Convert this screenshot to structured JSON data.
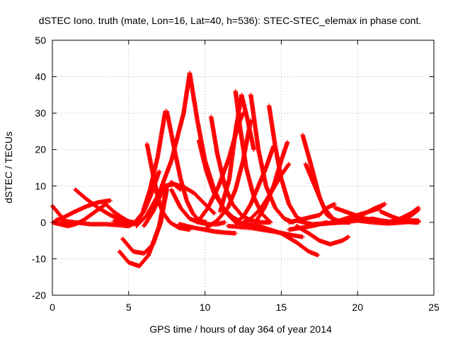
{
  "chart_data": {
    "type": "scatter",
    "title": "dSTEC Iono. truth (mate, Lon=16, Lat=40, h=536): STEC-STEC_elemax in phase cont.",
    "xlabel": "GPS time / hours of day 364 of year 2014",
    "ylabel": "dSTEC  / TECUs",
    "xlim": [
      0,
      25
    ],
    "ylim": [
      -20,
      50
    ],
    "xticks": [
      0,
      5,
      10,
      15,
      20,
      25
    ],
    "yticks": [
      -20,
      -10,
      0,
      10,
      20,
      30,
      40,
      50
    ],
    "grid": true,
    "marker": "plus",
    "color": "#ff0000",
    "series": [
      {
        "x": [
          0.0,
          0.4,
          0.8,
          1.0
        ],
        "y": [
          4.5,
          2.5,
          0.5,
          -0.5
        ]
      },
      {
        "x": [
          0.0,
          0.5,
          1.0,
          1.5,
          2.0,
          2.5,
          3.0,
          3.5
        ],
        "y": [
          0.0,
          -0.5,
          -1.0,
          -0.5,
          0.5,
          2.0,
          3.5,
          5.0
        ]
      },
      {
        "x": [
          0.2,
          0.8,
          1.5,
          2.3,
          3.0,
          3.8
        ],
        "y": [
          0.5,
          1.5,
          3.0,
          4.5,
          5.5,
          6.0
        ]
      },
      {
        "x": [
          1.5,
          2.2,
          3.0,
          3.8,
          4.5,
          5.0,
          5.3,
          5.5
        ],
        "y": [
          9.0,
          6.5,
          4.0,
          2.0,
          0.8,
          0.3,
          0.0,
          0.0
        ]
      },
      {
        "x": [
          3.5,
          4.0,
          4.5,
          4.9
        ],
        "y": [
          5.0,
          3.0,
          1.5,
          0.5
        ]
      },
      {
        "x": [
          0.5,
          1.5,
          2.5,
          3.5,
          4.5,
          5.0,
          5.5,
          6.0,
          6.5,
          7.0
        ],
        "y": [
          0.5,
          0.0,
          -0.5,
          -0.5,
          -0.8,
          -1.0,
          0.0,
          3.0,
          8.0,
          14.0
        ]
      },
      {
        "x": [
          4.0,
          4.8,
          5.4,
          5.9,
          6.4,
          6.9,
          7.4
        ],
        "y": [
          0.3,
          -0.2,
          0.0,
          2.5,
          9.0,
          18.0,
          30.5
        ]
      },
      {
        "x": [
          5.5,
          6.2,
          7.0,
          7.8,
          8.6,
          9.0
        ],
        "y": [
          -1.0,
          2.0,
          8.0,
          17.0,
          30.0,
          41.0
        ]
      },
      {
        "x": [
          6.2,
          6.6,
          6.9,
          7.2,
          7.7,
          8.3,
          9.0
        ],
        "y": [
          21.5,
          13.0,
          7.0,
          3.0,
          0.0,
          -1.5,
          -2.0
        ]
      },
      {
        "x": [
          7.5,
          8.0,
          8.4,
          8.8,
          9.2,
          9.6,
          10.1
        ],
        "y": [
          30.5,
          20.0,
          12.0,
          6.0,
          2.5,
          0.5,
          0.0
        ]
      },
      {
        "x": [
          9.0,
          9.5,
          10.0,
          10.6,
          11.3,
          12.0
        ],
        "y": [
          41.0,
          28.0,
          17.0,
          9.0,
          3.0,
          0.0
        ]
      },
      {
        "x": [
          4.4,
          5.0,
          5.7,
          6.3,
          7.0,
          7.5
        ],
        "y": [
          -8.0,
          -11.0,
          -12.0,
          -9.0,
          -1.0,
          10.0
        ]
      },
      {
        "x": [
          4.6,
          5.3,
          6.0,
          6.6,
          7.1,
          7.5
        ],
        "y": [
          -4.5,
          -8.0,
          -8.5,
          -6.0,
          0.0,
          9.0
        ]
      },
      {
        "x": [
          6.0,
          6.6,
          7.2,
          7.8,
          8.4
        ],
        "y": [
          -1.0,
          3.0,
          8.5,
          11.0,
          9.0
        ]
      },
      {
        "x": [
          7.3,
          8.0,
          8.7,
          9.3,
          10.0,
          10.6
        ],
        "y": [
          10.0,
          10.5,
          9.5,
          8.0,
          5.0,
          2.5
        ]
      },
      {
        "x": [
          7.8,
          8.4,
          9.0,
          9.6,
          10.2,
          10.8,
          11.3
        ],
        "y": [
          9.0,
          4.0,
          1.0,
          0.0,
          -0.5,
          -0.5,
          0.0
        ]
      },
      {
        "x": [
          8.3,
          8.8,
          9.3,
          10.0,
          10.6,
          11.3,
          12.0
        ],
        "y": [
          -0.5,
          -1.0,
          -1.5,
          -2.0,
          -2.5,
          -2.8,
          -3.0
        ]
      },
      {
        "x": [
          9.5,
          10.2,
          10.9,
          11.6,
          12.2,
          12.5
        ],
        "y": [
          0.0,
          4.0,
          10.0,
          18.0,
          27.0,
          30.0
        ]
      },
      {
        "x": [
          10.4,
          10.8,
          11.3,
          11.8,
          12.4,
          13.0,
          13.7,
          14.2
        ],
        "y": [
          29.0,
          19.0,
          10.0,
          5.0,
          2.0,
          0.5,
          0.0,
          0.0
        ]
      },
      {
        "x": [
          9.6,
          10.1,
          10.6,
          11.2,
          11.8,
          12.2
        ],
        "y": [
          22.5,
          14.0,
          8.0,
          4.0,
          1.5,
          0.5
        ]
      },
      {
        "x": [
          10.1,
          10.8,
          11.5,
          12.0,
          12.5,
          13.0
        ],
        "y": [
          -1.5,
          0.5,
          4.0,
          9.0,
          17.0,
          28.0
        ]
      },
      {
        "x": [
          11.0,
          11.6,
          12.0,
          12.4,
          12.8,
          13.2
        ],
        "y": [
          3.0,
          12.0,
          25.0,
          35.0,
          28.0,
          20.0
        ]
      },
      {
        "x": [
          12.0,
          12.3,
          12.7,
          13.2,
          13.7,
          14.3
        ],
        "y": [
          36.0,
          26.0,
          15.0,
          7.0,
          2.5,
          0.0
        ]
      },
      {
        "x": [
          12.0,
          12.5,
          13.0,
          13.5,
          14.0,
          14.5
        ],
        "y": [
          0.0,
          1.5,
          5.0,
          10.0,
          15.0,
          21.0
        ]
      },
      {
        "x": [
          13.0,
          13.5,
          14.0,
          14.6,
          15.2,
          15.8
        ],
        "y": [
          35.0,
          20.0,
          10.0,
          4.0,
          1.0,
          0.0
        ]
      },
      {
        "x": [
          12.5,
          13.0,
          13.7,
          14.3,
          15.0,
          15.5
        ],
        "y": [
          0.0,
          1.0,
          4.0,
          8.0,
          13.0,
          16.0
        ]
      },
      {
        "x": [
          14.2,
          14.6,
          15.0,
          15.5,
          16.0,
          16.6
        ],
        "y": [
          32.0,
          21.0,
          12.0,
          5.0,
          1.5,
          0.0
        ]
      },
      {
        "x": [
          13.3,
          13.9,
          14.5,
          15.0,
          15.4
        ],
        "y": [
          0.0,
          4.0,
          10.0,
          17.0,
          22.0
        ]
      },
      {
        "x": [
          11.5,
          13.0,
          14.5,
          15.7,
          16.4
        ],
        "y": [
          -1.0,
          -1.5,
          -2.5,
          -3.5,
          -4.0
        ]
      },
      {
        "x": [
          12.0,
          13.5,
          15.0,
          16.0,
          16.8,
          17.4
        ],
        "y": [
          0.0,
          -1.0,
          -3.0,
          -5.5,
          -8.0,
          -9.0
        ]
      },
      {
        "x": [
          16.4,
          17.0,
          17.5,
          18.0,
          18.7,
          19.4
        ],
        "y": [
          24.0,
          15.0,
          7.0,
          2.0,
          0.0,
          0.0
        ]
      },
      {
        "x": [
          16.6,
          17.2,
          17.8,
          18.4,
          19.0,
          19.5
        ],
        "y": [
          16.0,
          10.0,
          4.0,
          1.0,
          0.0,
          0.0
        ]
      },
      {
        "x": [
          15.5,
          16.3,
          17.0,
          17.5,
          18.0
        ],
        "y": [
          -2.0,
          -1.5,
          -1.0,
          -0.5,
          0.0
        ]
      },
      {
        "x": [
          16.0,
          16.8,
          17.5,
          18.2,
          19.0,
          19.4
        ],
        "y": [
          -1.0,
          -3.0,
          -5.0,
          -6.0,
          -5.0,
          -4.0
        ]
      },
      {
        "x": [
          15.5,
          16.5,
          17.5,
          18.0,
          18.5
        ],
        "y": [
          0.0,
          1.0,
          2.0,
          4.0,
          5.0
        ]
      },
      {
        "x": [
          16.0,
          17.0,
          18.0,
          19.0,
          20.0,
          21.0,
          22.0
        ],
        "y": [
          0.5,
          -0.5,
          -0.3,
          0.0,
          0.5,
          1.0,
          0.0
        ]
      },
      {
        "x": [
          17.5,
          18.5,
          19.2,
          20.0,
          20.8,
          21.5
        ],
        "y": [
          -0.5,
          0.0,
          1.0,
          2.0,
          3.0,
          4.0
        ]
      },
      {
        "x": [
          18.5,
          19.5,
          20.5,
          21.5,
          22.5,
          23.5,
          24.0
        ],
        "y": [
          4.0,
          2.5,
          1.0,
          0.5,
          0.0,
          0.5,
          0.5
        ]
      },
      {
        "x": [
          19.0,
          19.8,
          20.5,
          21.2,
          21.8
        ],
        "y": [
          0.0,
          1.0,
          2.5,
          4.0,
          5.0
        ]
      },
      {
        "x": [
          20.0,
          21.0,
          22.0,
          23.0,
          24.0
        ],
        "y": [
          0.5,
          0.0,
          -0.3,
          0.0,
          0.3
        ]
      },
      {
        "x": [
          21.5,
          22.3,
          23.0,
          23.6,
          24.0
        ],
        "y": [
          3.0,
          1.5,
          0.5,
          0.0,
          0.0
        ]
      },
      {
        "x": [
          22.0,
          22.8,
          23.5,
          24.0
        ],
        "y": [
          0.0,
          1.0,
          2.5,
          4.0
        ]
      },
      {
        "x": [
          22.5,
          23.2,
          23.7,
          24.0
        ],
        "y": [
          0.0,
          1.0,
          2.5,
          3.5
        ]
      }
    ]
  }
}
